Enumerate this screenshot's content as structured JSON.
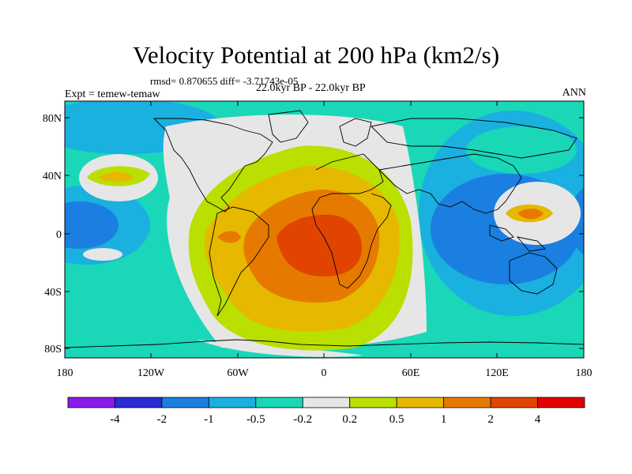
{
  "title": "Velocity Potential at 200 hPa (km2/s)",
  "stats": "rmsd= 0.870655 diff= -3.71743e-05",
  "experiment": "Expt = temew-temaw",
  "period": "22.0kyr BP - 22.0kyr BP",
  "season": "ANN",
  "axes": {
    "lat_ticks": [
      "80N",
      "40N",
      "0",
      "40S",
      "80S"
    ],
    "lon_ticks": [
      "180",
      "120W",
      "60W",
      "0",
      "60E",
      "120E",
      "180"
    ]
  },
  "colorbar": {
    "labels": [
      "-4",
      "-2",
      "-1",
      "-0.5",
      "-0.2",
      "0.2",
      "0.5",
      "1",
      "2",
      "4"
    ],
    "colors": [
      "#8a1aeb",
      "#2b2bd6",
      "#1a7fe0",
      "#1ab0e0",
      "#1ad7b8",
      "#e6e6e6",
      "#b9e000",
      "#e6b800",
      "#e67a00",
      "#e04400",
      "#e00000"
    ]
  }
}
